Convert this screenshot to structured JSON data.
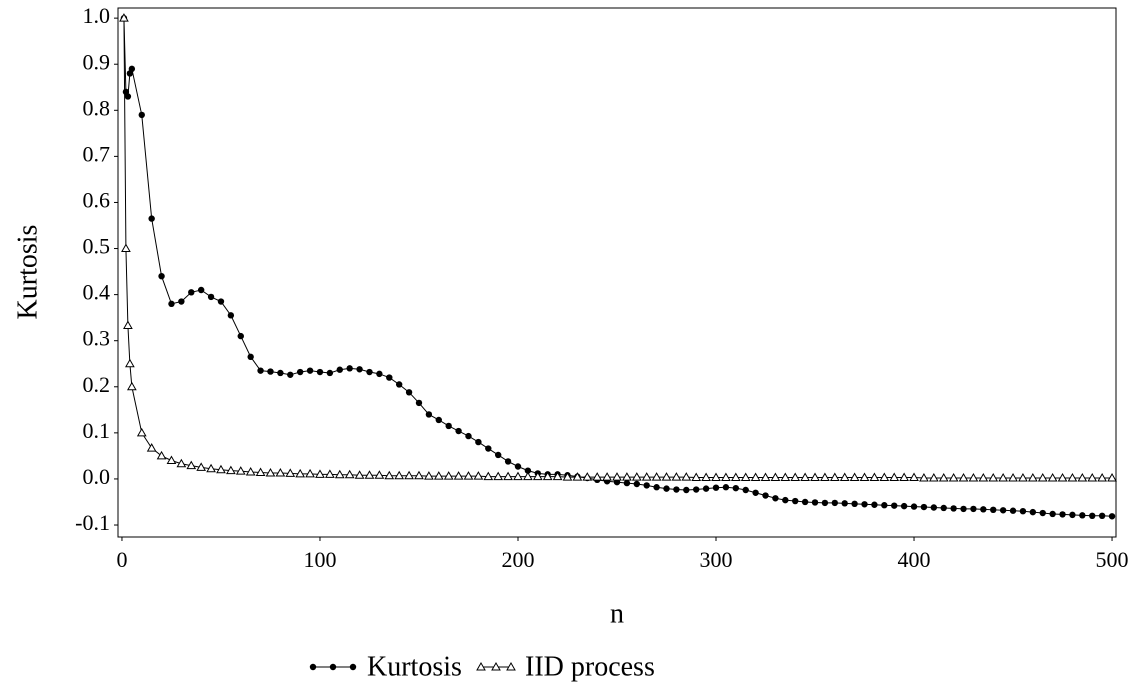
{
  "chart_data": {
    "type": "line",
    "x_label": "n",
    "y_label": "Kurtosis",
    "x": [
      1,
      2,
      3,
      4,
      5,
      10,
      15,
      20,
      25,
      30,
      35,
      40,
      45,
      50,
      55,
      60,
      65,
      70,
      75,
      80,
      85,
      90,
      95,
      100,
      105,
      110,
      115,
      120,
      125,
      130,
      135,
      140,
      145,
      150,
      155,
      160,
      165,
      170,
      175,
      180,
      185,
      190,
      195,
      200,
      205,
      210,
      215,
      220,
      225,
      230,
      235,
      240,
      245,
      250,
      255,
      260,
      265,
      270,
      275,
      280,
      285,
      290,
      295,
      300,
      305,
      310,
      315,
      320,
      325,
      330,
      335,
      340,
      345,
      350,
      355,
      360,
      365,
      370,
      375,
      380,
      385,
      390,
      395,
      400,
      405,
      410,
      415,
      420,
      425,
      430,
      435,
      440,
      445,
      450,
      455,
      460,
      465,
      470,
      475,
      480,
      485,
      490,
      495,
      500
    ],
    "series": [
      {
        "name": "Kurtosis",
        "color": "#000000",
        "marker": "circle",
        "values": [
          1.0,
          0.84,
          0.83,
          0.88,
          0.89,
          0.79,
          0.565,
          0.44,
          0.38,
          0.385,
          0.405,
          0.41,
          0.395,
          0.385,
          0.355,
          0.31,
          0.265,
          0.235,
          0.233,
          0.23,
          0.226,
          0.232,
          0.235,
          0.232,
          0.23,
          0.237,
          0.24,
          0.238,
          0.232,
          0.228,
          0.22,
          0.205,
          0.188,
          0.165,
          0.14,
          0.128,
          0.115,
          0.104,
          0.093,
          0.08,
          0.066,
          0.052,
          0.038,
          0.027,
          0.018,
          0.012,
          0.01,
          0.01,
          0.008,
          0.005,
          0.002,
          -0.002,
          -0.005,
          -0.007,
          -0.009,
          -0.011,
          -0.014,
          -0.018,
          -0.021,
          -0.023,
          -0.024,
          -0.023,
          -0.021,
          -0.019,
          -0.018,
          -0.02,
          -0.024,
          -0.03,
          -0.036,
          -0.042,
          -0.046,
          -0.048,
          -0.05,
          -0.051,
          -0.052,
          -0.052,
          -0.053,
          -0.054,
          -0.055,
          -0.056,
          -0.057,
          -0.058,
          -0.059,
          -0.06,
          -0.061,
          -0.062,
          -0.063,
          -0.064,
          -0.065,
          -0.065,
          -0.066,
          -0.067,
          -0.068,
          -0.069,
          -0.07,
          -0.072,
          -0.074,
          -0.076,
          -0.077,
          -0.078,
          -0.079,
          -0.08,
          -0.08,
          -0.081
        ]
      },
      {
        "name": "IID process",
        "color": "#000000",
        "marker": "triangle",
        "values": [
          1,
          0.5,
          0.333,
          0.25,
          0.2,
          0.1,
          0.067,
          0.05,
          0.04,
          0.033,
          0.029,
          0.025,
          0.022,
          0.02,
          0.018,
          0.017,
          0.015,
          0.014,
          0.013,
          0.013,
          0.012,
          0.011,
          0.011,
          0.01,
          0.01,
          0.009,
          0.009,
          0.008,
          0.008,
          0.008,
          0.007,
          0.007,
          0.007,
          0.007,
          0.006,
          0.006,
          0.006,
          0.006,
          0.006,
          0.006,
          0.005,
          0.005,
          0.005,
          0.005,
          0.005,
          0.005,
          0.005,
          0.005,
          0.004,
          0.004,
          0.004,
          0.004,
          0.004,
          0.004,
          0.004,
          0.004,
          0.004,
          0.004,
          0.004,
          0.004,
          0.004,
          0.003,
          0.003,
          0.003,
          0.003,
          0.003,
          0.003,
          0.003,
          0.003,
          0.003,
          0.003,
          0.003,
          0.003,
          0.003,
          0.003,
          0.003,
          0.003,
          0.003,
          0.003,
          0.003,
          0.003,
          0.003,
          0.003,
          0.003,
          0.002,
          0.002,
          0.002,
          0.002,
          0.002,
          0.002,
          0.002,
          0.002,
          0.002,
          0.002,
          0.002,
          0.002,
          0.002,
          0.002,
          0.002,
          0.002,
          0.002,
          0.002,
          0.002,
          0.002
        ]
      }
    ],
    "xlim": [
      -2,
      502
    ],
    "ylim": [
      -0.126,
      1.022
    ],
    "xticks": [
      0,
      100,
      200,
      300,
      400,
      500
    ],
    "yticks": [
      {
        "value": 1,
        "label": "1.0"
      },
      0.9,
      0.8,
      0.7,
      0.6,
      0.5,
      0.4,
      0.3,
      0.2,
      0.1,
      {
        "value": 0,
        "label": "0.0"
      },
      -0.1
    ],
    "grid": false,
    "legend": "bottom"
  }
}
